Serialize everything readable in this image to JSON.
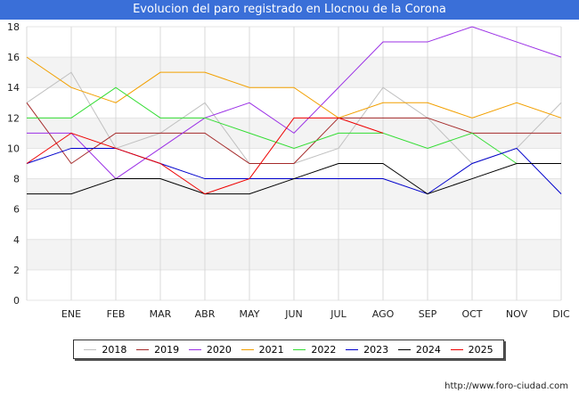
{
  "header": {
    "title": "Evolucion del paro registrado en Llocnou de la Corona"
  },
  "footer": {
    "source": "http://www.foro-ciudad.com"
  },
  "chart_data": {
    "type": "line",
    "title": "Evolucion del paro registrado en Llocnou de la Corona",
    "xlabel": "",
    "ylabel": "",
    "categories": [
      "",
      "ENE",
      "FEB",
      "MAR",
      "ABR",
      "MAY",
      "JUN",
      "JUL",
      "AGO",
      "SEP",
      "OCT",
      "NOV",
      "DIC"
    ],
    "ylim": [
      0,
      18
    ],
    "yticks": [
      0,
      2,
      4,
      6,
      8,
      10,
      12,
      14,
      16,
      18
    ],
    "grid": true,
    "legend_position": "bottom",
    "series": [
      {
        "name": "2018",
        "color": "#c0c0c0",
        "values": [
          13,
          15,
          10,
          11,
          13,
          9,
          9,
          10,
          14,
          12,
          9,
          10,
          13
        ]
      },
      {
        "name": "2019",
        "color": "#a52a2a",
        "values": [
          13,
          9,
          11,
          11,
          11,
          9,
          9,
          12,
          12,
          12,
          11,
          11,
          11
        ]
      },
      {
        "name": "2020",
        "color": "#9b30e6",
        "values": [
          11,
          11,
          8,
          10,
          12,
          13,
          11,
          14,
          17,
          17,
          18,
          17,
          16
        ]
      },
      {
        "name": "2021",
        "color": "#f2a000",
        "values": [
          16,
          14,
          13,
          15,
          15,
          14,
          14,
          12,
          13,
          13,
          12,
          13,
          12
        ]
      },
      {
        "name": "2022",
        "color": "#33dd33",
        "values": [
          12,
          12,
          14,
          12,
          12,
          11,
          10,
          11,
          11,
          10,
          11,
          9,
          null
        ]
      },
      {
        "name": "2023",
        "color": "#0000cc",
        "values": [
          9,
          10,
          10,
          9,
          8,
          8,
          8,
          8,
          8,
          7,
          9,
          10,
          7
        ]
      },
      {
        "name": "2024",
        "color": "#000000",
        "values": [
          7,
          7,
          8,
          8,
          7,
          7,
          8,
          9,
          9,
          7,
          8,
          9,
          9
        ]
      },
      {
        "name": "2025",
        "color": "#ee0000",
        "values": [
          9,
          11,
          10,
          9,
          7,
          8,
          12,
          12,
          11,
          null,
          null,
          null,
          null
        ]
      }
    ]
  }
}
